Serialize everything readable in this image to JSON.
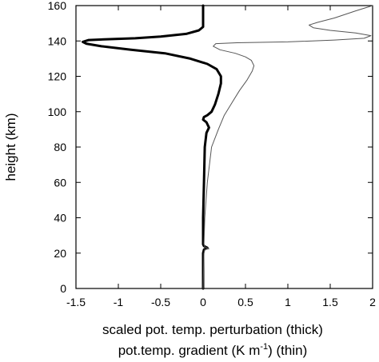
{
  "chart_data": {
    "type": "line",
    "xlabel_line1": "scaled pot. temp. perturbation (thick)",
    "xlabel_line2_pre": "pot.temp. gradient (K m",
    "xlabel_line2_sup": "-1",
    "xlabel_line2_post": ") (thin)",
    "ylabel": "height (km)",
    "xlim": [
      -1.5,
      2
    ],
    "ylim": [
      0,
      160
    ],
    "xticks": [
      -1.5,
      -1,
      -0.5,
      0,
      0.5,
      1,
      1.5,
      2
    ],
    "xtick_labels": [
      "-1.5",
      "-1",
      "-0.5",
      "0",
      "0.5",
      "1",
      "1.5",
      "2"
    ],
    "yticks": [
      0,
      20,
      40,
      60,
      80,
      100,
      120,
      140,
      160
    ],
    "ytick_labels": [
      "0",
      "20",
      "40",
      "60",
      "80",
      "100",
      "120",
      "140",
      "160"
    ],
    "grid": false,
    "legend": "none",
    "series": [
      {
        "style": "thick",
        "color": "#000000",
        "points": [
          [
            0,
            0
          ],
          [
            0,
            20
          ],
          [
            0.01,
            22
          ],
          [
            0.05,
            23
          ],
          [
            0.01,
            24
          ],
          [
            0,
            25
          ],
          [
            0,
            40
          ],
          [
            0.01,
            60
          ],
          [
            0.02,
            80
          ],
          [
            0.04,
            88
          ],
          [
            0.07,
            91
          ],
          [
            0.04,
            94
          ],
          [
            0.0,
            95.5
          ],
          [
            0.01,
            97
          ],
          [
            0.05,
            98
          ],
          [
            0.1,
            100
          ],
          [
            0.14,
            104
          ],
          [
            0.18,
            110
          ],
          [
            0.21,
            116
          ],
          [
            0.21,
            120
          ],
          [
            0.16,
            124
          ],
          [
            0.05,
            127
          ],
          [
            -0.15,
            130
          ],
          [
            -0.45,
            133
          ],
          [
            -0.85,
            135
          ],
          [
            -1.2,
            137
          ],
          [
            -1.38,
            138.5
          ],
          [
            -1.42,
            139.5
          ],
          [
            -1.35,
            140.5
          ],
          [
            -1.1,
            141
          ],
          [
            -0.8,
            141.5
          ],
          [
            -0.5,
            142.5
          ],
          [
            -0.2,
            144
          ],
          [
            -0.05,
            146
          ],
          [
            0,
            148
          ],
          [
            0,
            160
          ]
        ]
      },
      {
        "style": "thin",
        "color": "#555555",
        "points": [
          [
            0,
            0
          ],
          [
            0.01,
            20
          ],
          [
            0.02,
            22
          ],
          [
            0.07,
            22.5
          ],
          [
            0.02,
            23.5
          ],
          [
            0.01,
            25
          ],
          [
            0.02,
            40
          ],
          [
            0.05,
            60
          ],
          [
            0.1,
            80
          ],
          [
            0.18,
            90
          ],
          [
            0.25,
            98
          ],
          [
            0.34,
            105
          ],
          [
            0.43,
            112
          ],
          [
            0.52,
            118
          ],
          [
            0.58,
            123
          ],
          [
            0.6,
            126
          ],
          [
            0.57,
            129
          ],
          [
            0.5,
            131
          ],
          [
            0.38,
            133
          ],
          [
            0.2,
            135
          ],
          [
            0.12,
            137
          ],
          [
            0.15,
            138.5
          ],
          [
            0.4,
            139
          ],
          [
            1.0,
            139.5
          ],
          [
            1.55,
            140.5
          ],
          [
            1.9,
            141.5
          ],
          [
            1.98,
            143
          ],
          [
            1.8,
            144.5
          ],
          [
            1.5,
            146
          ],
          [
            1.3,
            147.5
          ],
          [
            1.25,
            149
          ],
          [
            1.35,
            150.5
          ],
          [
            1.55,
            153
          ],
          [
            1.8,
            157
          ],
          [
            2.0,
            160
          ]
        ]
      }
    ]
  }
}
